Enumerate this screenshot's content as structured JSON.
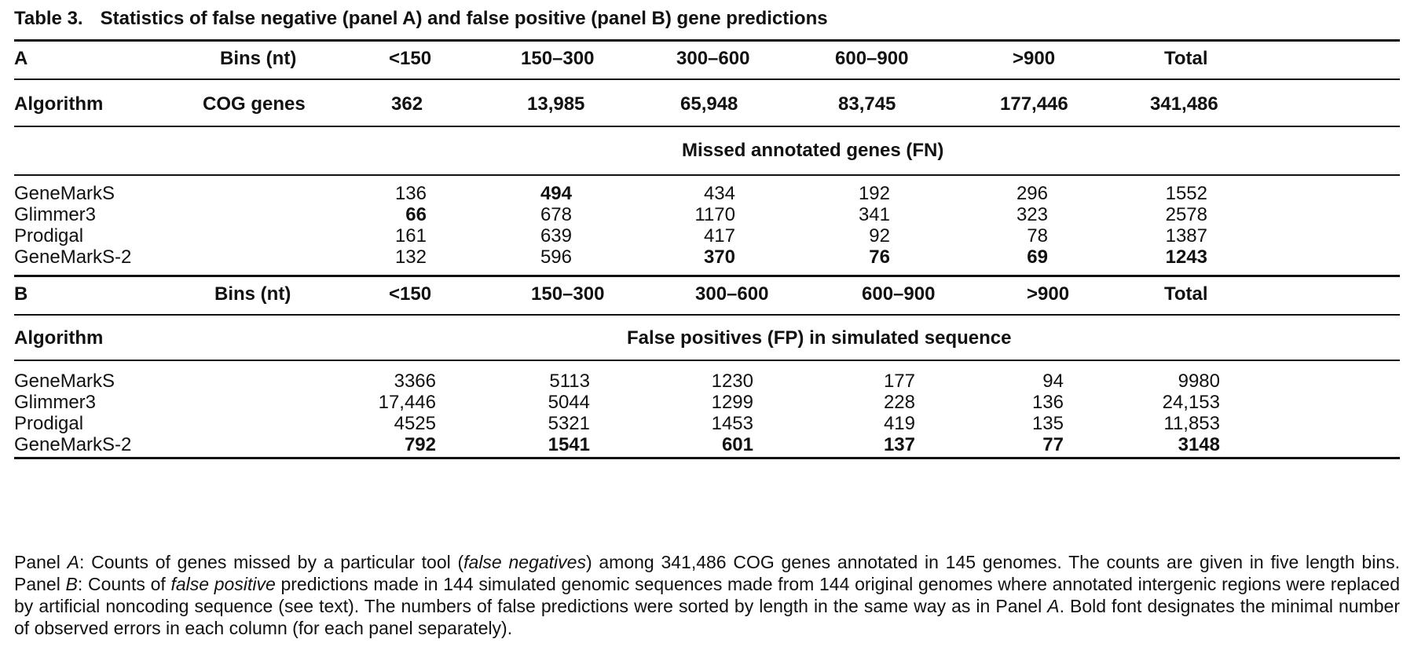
{
  "caption": {
    "label": "Table 3.",
    "text": "Statistics of false negative (panel A) and false positive (panel B) gene predictions"
  },
  "panel_a": {
    "header": [
      "A",
      "Bins (nt)",
      "<150",
      "150–300",
      "300–600",
      "600–900",
      ">900",
      "Total"
    ],
    "cog_row": [
      "Algorithm",
      "COG genes",
      "362",
      "13,985",
      "65,948",
      "83,745",
      "177,446",
      "341,486"
    ],
    "section_title": "Missed annotated genes (FN)",
    "rows": [
      {
        "name": "GeneMarkS",
        "values": [
          "136",
          "494",
          "434",
          "192",
          "296",
          "1552"
        ],
        "bold": [
          false,
          true,
          false,
          false,
          false,
          false
        ]
      },
      {
        "name": "Glimmer3",
        "values": [
          "66",
          "678",
          "1170",
          "341",
          "323",
          "2578"
        ],
        "bold": [
          true,
          false,
          false,
          false,
          false,
          false
        ]
      },
      {
        "name": "Prodigal",
        "values": [
          "161",
          "639",
          "417",
          "92",
          "78",
          "1387"
        ],
        "bold": [
          false,
          false,
          false,
          false,
          false,
          false
        ]
      },
      {
        "name": "GeneMarkS-2",
        "values": [
          "132",
          "596",
          "370",
          "76",
          "69",
          "1243"
        ],
        "bold": [
          false,
          false,
          true,
          true,
          true,
          true
        ]
      }
    ]
  },
  "panel_b": {
    "header": [
      "B",
      "Bins (nt)",
      "<150",
      "150–300",
      "300–600",
      "600–900",
      ">900",
      "Total"
    ],
    "algorithm_label": "Algorithm",
    "section_title": "False positives (FP) in simulated sequence",
    "rows": [
      {
        "name": "GeneMarkS",
        "values": [
          "3366",
          "5113",
          "1230",
          "177",
          "94",
          "9980"
        ],
        "bold": [
          false,
          false,
          false,
          false,
          false,
          false
        ]
      },
      {
        "name": "Glimmer3",
        "values": [
          "17,446",
          "5044",
          "1299",
          "228",
          "136",
          "24,153"
        ],
        "bold": [
          false,
          false,
          false,
          false,
          false,
          false
        ]
      },
      {
        "name": "Prodigal",
        "values": [
          "4525",
          "5321",
          "1453",
          "419",
          "135",
          "11,853"
        ],
        "bold": [
          false,
          false,
          false,
          false,
          false,
          false
        ]
      },
      {
        "name": "GeneMarkS-2",
        "values": [
          "792",
          "1541",
          "601",
          "137",
          "77",
          "3148"
        ],
        "bold": [
          true,
          true,
          true,
          true,
          true,
          true
        ]
      }
    ]
  },
  "footnote": {
    "s1": "Panel ",
    "s2": "A",
    "s3": ": Counts of genes missed by a particular tool (",
    "s4": "false negatives",
    "s5": ") among 341,486 COG genes annotated in 145 genomes. The counts are given in five length bins. Panel ",
    "s6": "B",
    "s7": ": Counts of ",
    "s8": "false positive",
    "s9": " predictions made in 144 simulated genomic sequences made from 144 original genomes where annotated intergenic regions were replaced by artificial noncoding sequence (see text). The numbers of false predictions were sorted by length in the same way as in Panel ",
    "s10": "A",
    "s11": ". Bold font designates the minimal number of observed errors in each column (for each panel separately)."
  }
}
